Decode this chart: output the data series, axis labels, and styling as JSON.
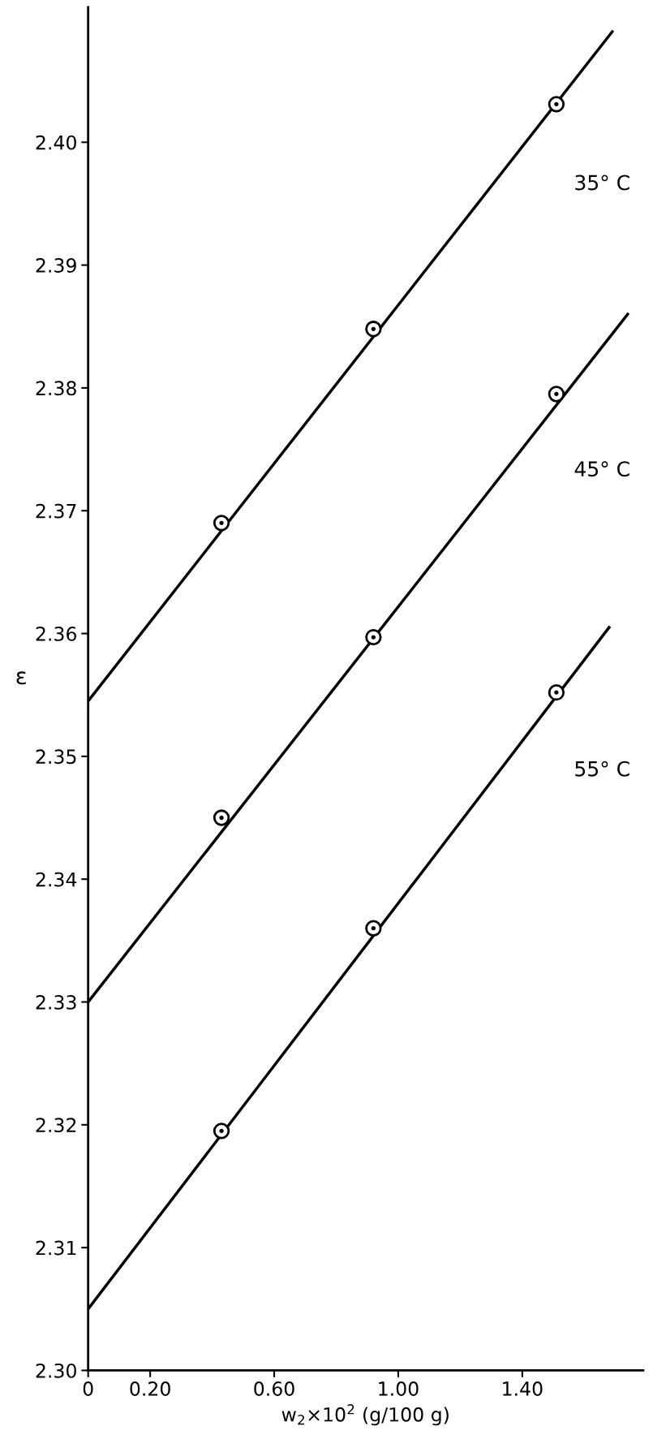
{
  "chart_data": {
    "type": "scatter",
    "xlabel": "w$_{2}$×10$^{2}$ (g/100 g)",
    "ylabel": "ε",
    "xlim": [
      0,
      1.79
    ],
    "ylim": [
      2.3,
      2.411
    ],
    "xticks": [
      {
        "value": 0,
        "label": "0"
      },
      {
        "value": 0.2,
        "label": "0.20"
      },
      {
        "value": 0.6,
        "label": "0.60"
      },
      {
        "value": 1.0,
        "label": "1.00"
      },
      {
        "value": 1.4,
        "label": "1.40"
      }
    ],
    "yticks": [
      {
        "value": 2.3,
        "label": "2.30"
      },
      {
        "value": 2.31,
        "label": "2.31"
      },
      {
        "value": 2.32,
        "label": "2.32"
      },
      {
        "value": 2.33,
        "label": "2.33"
      },
      {
        "value": 2.34,
        "label": "2.34"
      },
      {
        "value": 2.35,
        "label": "2.35"
      },
      {
        "value": 2.36,
        "label": "2.36"
      },
      {
        "value": 2.37,
        "label": "2.37"
      },
      {
        "value": 2.38,
        "label": "2.38"
      },
      {
        "value": 2.39,
        "label": "2.39"
      },
      {
        "value": 2.4,
        "label": "2.40"
      }
    ],
    "grid": false,
    "legend": false,
    "series": [
      {
        "marker": "circle",
        "color": "#000000",
        "x": [
          0.43,
          0.92,
          1.51
        ],
        "values": [
          2.369,
          2.3848,
          2.4031
        ]
      },
      {
        "marker": "circle",
        "color": "#000000",
        "x": [
          0.43,
          0.92,
          1.51
        ],
        "values": [
          2.345,
          2.3597,
          2.3795
        ]
      },
      {
        "marker": "circle",
        "color": "#000000",
        "x": [
          0.43,
          0.92,
          1.51
        ],
        "values": [
          2.3195,
          2.336,
          2.3552
        ]
      },
      {
        "type": "line",
        "marker": "none",
        "color": "#000000",
        "x": [
          0,
          1.69
        ],
        "values": [
          2.3545,
          2.409
        ]
      },
      {
        "type": "line",
        "marker": "none",
        "color": "#000000",
        "x": [
          0,
          1.74
        ],
        "values": [
          2.33,
          2.386
        ]
      },
      {
        "type": "line",
        "marker": "none",
        "color": "#000000",
        "x": [
          0,
          1.68
        ],
        "values": [
          2.305,
          2.3605
        ]
      }
    ],
    "annotations": [
      "35° C",
      "45° C",
      "55° C"
    ]
  }
}
